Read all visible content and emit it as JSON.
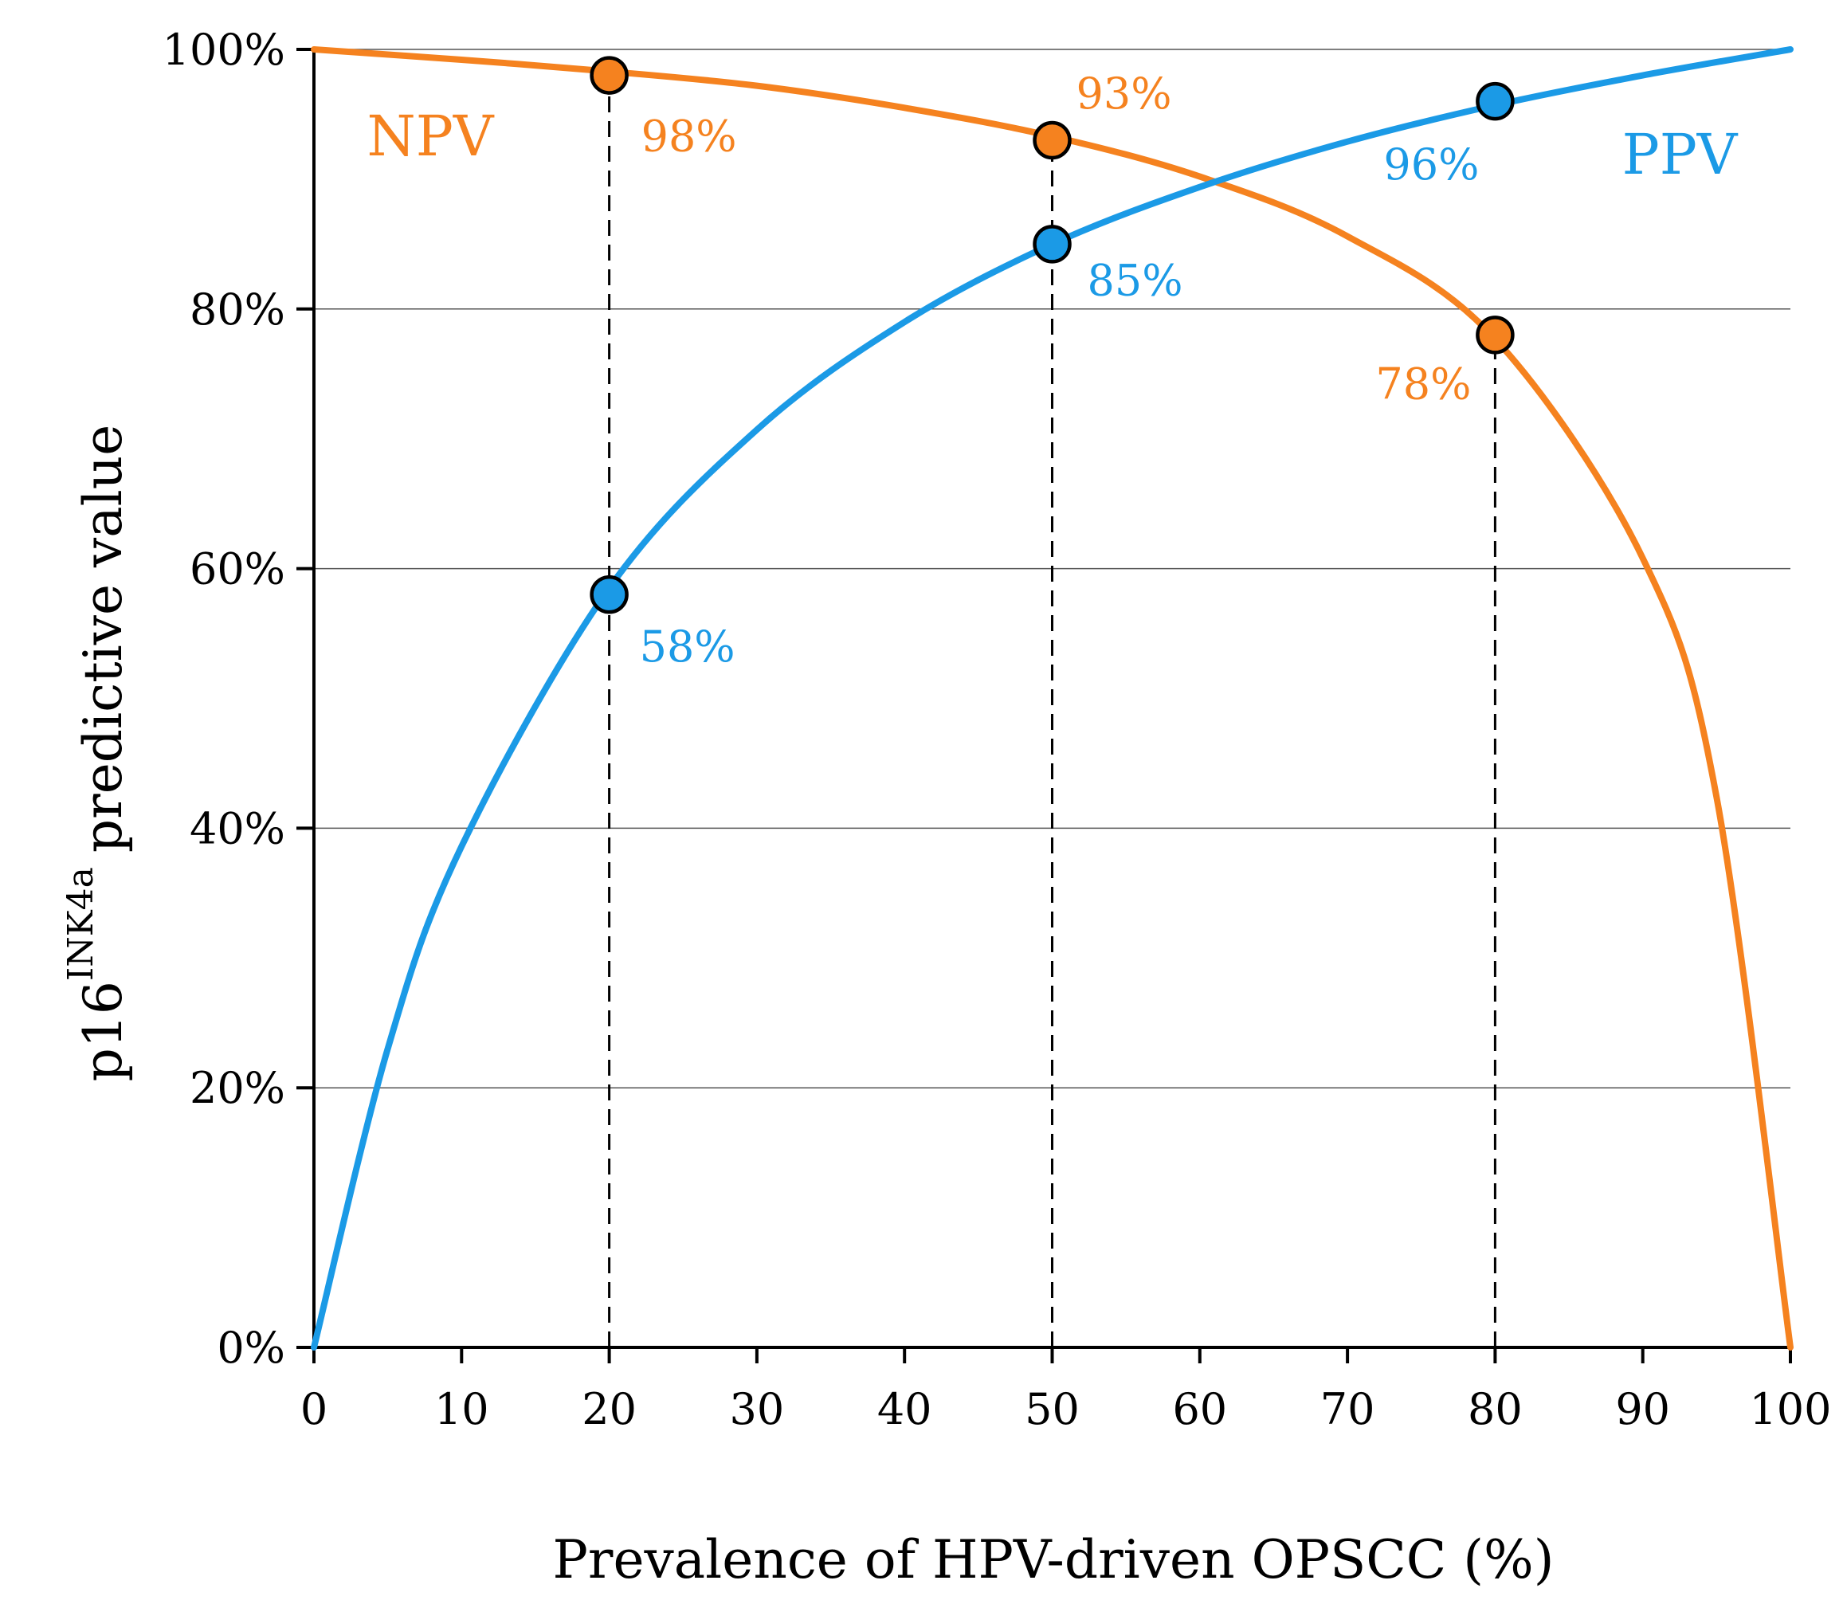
{
  "chart_data": {
    "type": "line",
    "title": "",
    "xlabel": "Prevalence of HPV-driven OPSCC  (%)",
    "ylabel": {
      "prefix": "p16",
      "superscript": "INK4a",
      "suffix": "predictive value"
    },
    "xlim": [
      0,
      100
    ],
    "ylim": [
      0,
      100
    ],
    "x_ticks": [
      0,
      10,
      20,
      30,
      40,
      50,
      60,
      70,
      80,
      90,
      100
    ],
    "x_tick_labels": [
      "0",
      "10",
      "20",
      "30",
      "40",
      "50",
      "60",
      "70",
      "80",
      "90",
      "100"
    ],
    "y_ticks": [
      0,
      20,
      40,
      60,
      80,
      100
    ],
    "y_tick_labels": [
      "0%",
      "20%",
      "40%",
      "60%",
      "80%",
      "100%"
    ],
    "grid": "horizontal",
    "reference_lines_x": [
      20,
      50,
      80
    ],
    "series": [
      {
        "name": "NPV",
        "color": "#f5821f",
        "x": [
          0,
          10,
          20,
          30,
          40,
          50,
          60,
          70,
          80,
          90,
          95,
          100
        ],
        "values": [
          100,
          99.2,
          98.3,
          97.2,
          95.5,
          93.3,
          90.2,
          85.6,
          77.7,
          60.8,
          42.4,
          0
        ],
        "points": [
          {
            "x": 20,
            "y": 98,
            "label": "98%"
          },
          {
            "x": 50,
            "y": 93,
            "label": "93%"
          },
          {
            "x": 80,
            "y": 78,
            "label": "78%"
          }
        ]
      },
      {
        "name": "PPV",
        "color": "#1b9ae6",
        "x": [
          0,
          5,
          10,
          20,
          30,
          40,
          50,
          60,
          70,
          80,
          90,
          100
        ],
        "values": [
          0,
          23.0,
          38.6,
          58.5,
          70.7,
          79.0,
          85.0,
          89.4,
          92.9,
          95.7,
          98.0,
          100
        ],
        "points": [
          {
            "x": 20,
            "y": 58,
            "label": "58%"
          },
          {
            "x": 50,
            "y": 85,
            "label": "85%"
          },
          {
            "x": 80,
            "y": 96,
            "label": "96%"
          }
        ]
      }
    ]
  }
}
